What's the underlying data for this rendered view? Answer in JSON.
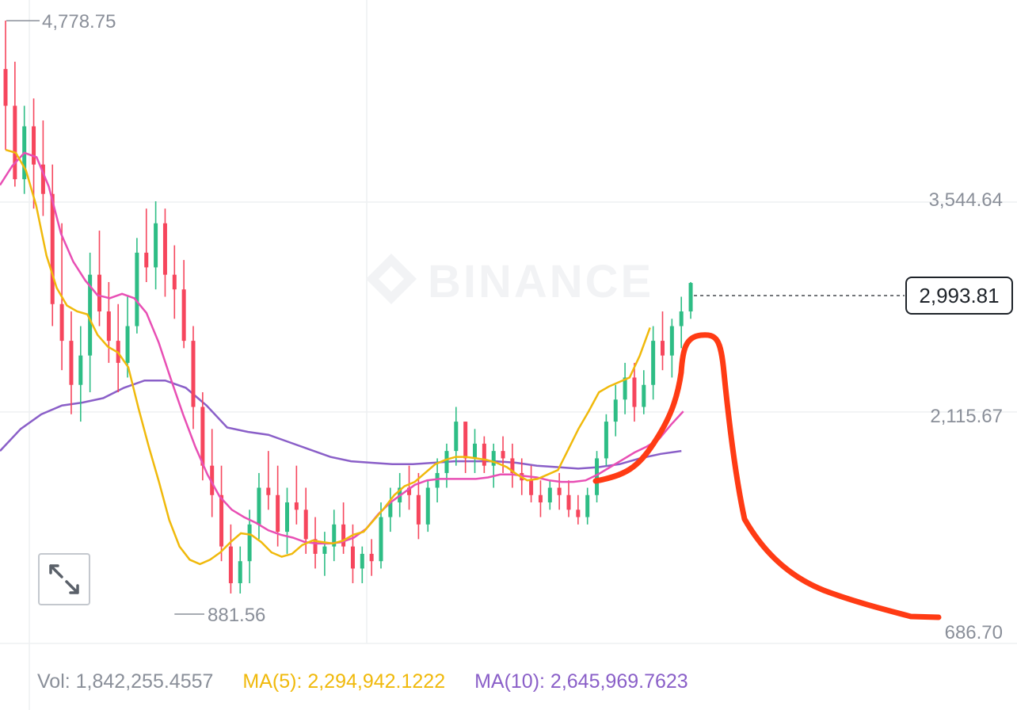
{
  "chart_data": {
    "type": "candlestick",
    "title": "",
    "xlabel": "",
    "ylabel": "",
    "y_ticks": [
      "3,544.64",
      "2,115.67",
      "686.70"
    ],
    "y_tick_values": [
      3544.64,
      2115.67,
      686.7
    ],
    "ylim": [
      540,
      4920
    ],
    "annotations": {
      "high_label": "4,778.75",
      "high_value": 4778.75,
      "low_label": "881.56",
      "low_value": 881.56,
      "current_label": "2,993.81",
      "current_value": 2993.81
    },
    "grid": true,
    "watermark": "BINANCE",
    "colors": {
      "up": "#2ebd85",
      "down": "#f6465d",
      "ma_short": "#f0b90b",
      "ma_mid": "#e84fb4",
      "ma_long": "#8a5fc8",
      "drawing": "#ff3b14"
    },
    "ma_short": [
      3900,
      3880,
      3760,
      3520,
      3180,
      2960,
      2840,
      2800,
      2780,
      2640,
      2560,
      2520,
      2420,
      2140,
      1880,
      1640,
      1380,
      1200,
      1110,
      1080,
      1110,
      1160,
      1230,
      1290,
      1280,
      1230,
      1160,
      1130,
      1150,
      1210,
      1240,
      1230,
      1220,
      1240,
      1280,
      1300,
      1380,
      1460,
      1550,
      1610,
      1640,
      1700,
      1760,
      1790,
      1810,
      1810,
      1800,
      1790,
      1770,
      1740,
      1690,
      1650,
      1660,
      1690,
      1720,
      1860,
      2000,
      2120,
      2250,
      2290,
      2320,
      2350,
      2500,
      2690
    ],
    "ma_mid": [
      3660,
      3790,
      3880,
      3850,
      3650,
      3330,
      3140,
      3010,
      2910,
      2890,
      2920,
      2890,
      2790,
      2590,
      2340,
      2100,
      1880,
      1690,
      1540,
      1450,
      1400,
      1360,
      1310,
      1280,
      1260,
      1230,
      1220,
      1220,
      1230,
      1260,
      1320,
      1420,
      1500,
      1560,
      1620,
      1650,
      1660,
      1660,
      1660,
      1660,
      1670,
      1690,
      1690,
      1680,
      1670,
      1650,
      1640,
      1640,
      1650,
      1690,
      1740,
      1790,
      1840,
      1880,
      1930,
      2030,
      2120
    ],
    "ma_long": [
      1850,
      2000,
      2100,
      2160,
      2180,
      2210,
      2280,
      2330,
      2330,
      2280,
      2160,
      2010,
      1980,
      1960,
      1910,
      1860,
      1810,
      1780,
      1770,
      1760,
      1760,
      1770,
      1780,
      1780,
      1780,
      1770,
      1750,
      1740,
      1730,
      1740,
      1760,
      1800,
      1830,
      1850
    ],
    "ohlc": [
      [
        4450,
        4780,
        3900,
        4200
      ],
      [
        4200,
        4500,
        3650,
        3700
      ],
      [
        3700,
        4200,
        3600,
        4060
      ],
      [
        4060,
        4250,
        3500,
        3800
      ],
      [
        3800,
        4100,
        3450,
        3600
      ],
      [
        3600,
        3800,
        2700,
        2850
      ],
      [
        2850,
        3400,
        2400,
        2600
      ],
      [
        2600,
        2800,
        2100,
        2300
      ],
      [
        2300,
        2700,
        2050,
        2500
      ],
      [
        2500,
        3200,
        2250,
        3050
      ],
      [
        3050,
        3350,
        2700,
        2800
      ],
      [
        2800,
        3000,
        2450,
        2600
      ],
      [
        2600,
        2850,
        2250,
        2450
      ],
      [
        2450,
        2900,
        2350,
        2700
      ],
      [
        2700,
        3300,
        2650,
        3200
      ],
      [
        3200,
        3500,
        3000,
        3100
      ],
      [
        3100,
        3550,
        2950,
        3400
      ],
      [
        3400,
        3500,
        2900,
        3050
      ],
      [
        3050,
        3250,
        2750,
        2950
      ],
      [
        2950,
        3150,
        2550,
        2600
      ],
      [
        2600,
        2700,
        2000,
        2150
      ],
      [
        2150,
        2250,
        1650,
        1750
      ],
      [
        1750,
        2000,
        1400,
        1550
      ],
      [
        1550,
        1750,
        1100,
        1200
      ],
      [
        1200,
        1350,
        880,
        950
      ],
      [
        950,
        1200,
        880,
        1100
      ],
      [
        1100,
        1450,
        950,
        1350
      ],
      [
        1350,
        1700,
        1250,
        1600
      ],
      [
        1600,
        1850,
        1450,
        1550
      ],
      [
        1550,
        1750,
        1200,
        1300
      ],
      [
        1300,
        1600,
        1150,
        1500
      ],
      [
        1500,
        1750,
        1350,
        1450
      ],
      [
        1450,
        1600,
        1150,
        1250
      ],
      [
        1250,
        1400,
        1050,
        1150
      ],
      [
        1150,
        1300,
        1000,
        1200
      ],
      [
        1200,
        1450,
        1100,
        1350
      ],
      [
        1350,
        1500,
        1150,
        1200
      ],
      [
        1200,
        1350,
        950,
        1050
      ],
      [
        1050,
        1200,
        950,
        1150
      ],
      [
        1150,
        1250,
        1000,
        1100
      ],
      [
        1100,
        1500,
        1050,
        1400
      ],
      [
        1400,
        1600,
        1300,
        1500
      ],
      [
        1500,
        1700,
        1400,
        1600
      ],
      [
        1600,
        1750,
        1450,
        1550
      ],
      [
        1550,
        1700,
        1250,
        1350
      ],
      [
        1350,
        1650,
        1300,
        1600
      ],
      [
        1600,
        1800,
        1500,
        1700
      ],
      [
        1700,
        1900,
        1600,
        1850
      ],
      [
        1850,
        2150,
        1750,
        2050
      ],
      [
        2050,
        2050,
        1700,
        1800
      ],
      [
        1800,
        2000,
        1700,
        1900
      ],
      [
        1900,
        1950,
        1700,
        1750
      ],
      [
        1750,
        1900,
        1600,
        1850
      ],
      [
        1850,
        1950,
        1700,
        1800
      ],
      [
        1800,
        1900,
        1600,
        1700
      ],
      [
        1700,
        1800,
        1550,
        1650
      ],
      [
        1650,
        1750,
        1500,
        1550
      ],
      [
        1550,
        1650,
        1400,
        1500
      ],
      [
        1500,
        1650,
        1450,
        1600
      ],
      [
        1600,
        1700,
        1450,
        1550
      ],
      [
        1550,
        1650,
        1400,
        1450
      ],
      [
        1450,
        1550,
        1350,
        1400
      ],
      [
        1400,
        1600,
        1350,
        1550
      ],
      [
        1550,
        1850,
        1500,
        1800
      ],
      [
        1800,
        2100,
        1750,
        2050
      ],
      [
        2050,
        2300,
        1950,
        2200
      ],
      [
        2200,
        2450,
        2100,
        2350
      ],
      [
        2350,
        2450,
        2050,
        2150
      ],
      [
        2150,
        2400,
        2100,
        2300
      ],
      [
        2300,
        2700,
        2200,
        2600
      ],
      [
        2600,
        2800,
        2400,
        2500
      ],
      [
        2500,
        2750,
        2350,
        2700
      ],
      [
        2700,
        2900,
        2550,
        2800
      ],
      [
        2800,
        3000,
        2750,
        2993.81
      ]
    ]
  },
  "legend": {
    "vol": "Vol: 1,842,255.4557",
    "ma5": "MA(5): 2,294,942.1222",
    "ma10": "MA(10): 2,645,969.7623"
  }
}
